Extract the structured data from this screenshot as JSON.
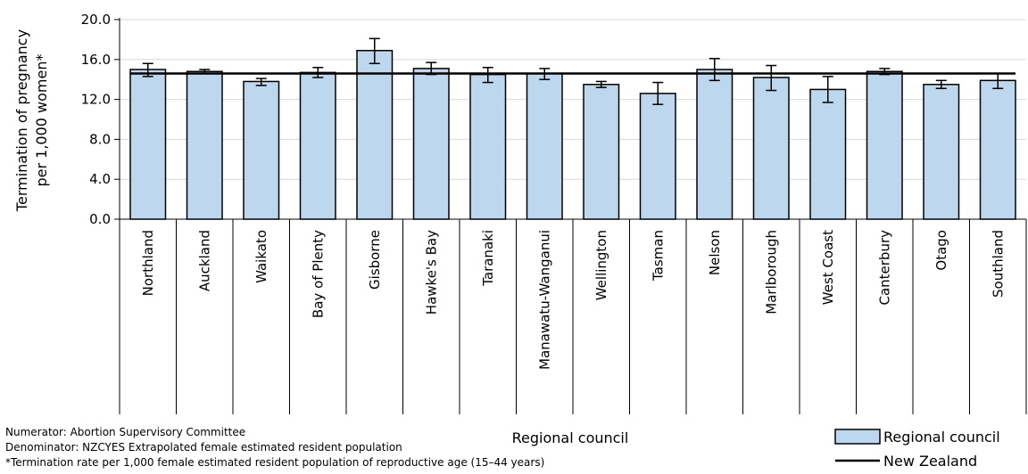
{
  "chart_data": {
    "type": "bar",
    "title": "",
    "xlabel": "Regional council",
    "ylabel_lines": [
      "Termination of pregnancy",
      "per 1,000 women*"
    ],
    "ylim": [
      0,
      20
    ],
    "yticks": [
      "0.0",
      "4.0",
      "8.0",
      "12.0",
      "16.0",
      "20.0"
    ],
    "categories": [
      "Northland",
      "Auckland",
      "Waikato",
      "Bay of Plenty",
      "Gisborne",
      "Hawke's Bay",
      "Taranaki",
      "Manawatu-Wanganui",
      "Wellington",
      "Tasman",
      "Nelson",
      "Marlborough",
      "West Coast",
      "Canterbury",
      "Otago",
      "Southland"
    ],
    "series": [
      {
        "name": "Regional council",
        "values": [
          15.0,
          14.8,
          13.8,
          14.7,
          16.9,
          15.1,
          14.5,
          14.6,
          13.5,
          12.6,
          15.0,
          14.2,
          13.0,
          14.8,
          13.5,
          13.9
        ],
        "ci_lower": [
          14.3,
          14.6,
          13.4,
          14.2,
          15.6,
          14.5,
          13.7,
          14.0,
          13.2,
          11.5,
          13.9,
          12.9,
          11.7,
          14.5,
          13.1,
          13.1
        ],
        "ci_upper": [
          15.6,
          15.0,
          14.1,
          15.2,
          18.1,
          15.7,
          15.2,
          15.1,
          13.8,
          13.7,
          16.1,
          15.4,
          14.3,
          15.1,
          13.9,
          14.6
        ],
        "color": "#bdd7ee"
      },
      {
        "name": "New Zealand",
        "type": "line",
        "value": 14.6,
        "color": "#000000"
      }
    ],
    "legend_position": "bottom-right",
    "grid": "horizontal",
    "notes": [
      "Numerator: Abortion Supervisory Committee",
      "Denominator: NZCYES Extrapolated female estimated resident population",
      "*Termination rate per 1,000 female estimated resident population of reproductive age (15–44 years)"
    ]
  }
}
